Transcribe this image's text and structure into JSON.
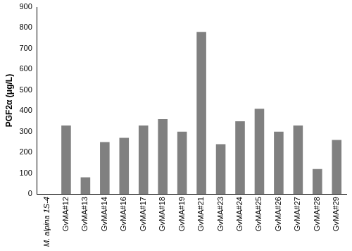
{
  "chart_data": {
    "type": "bar",
    "y_label": "PGF2α (μg/L)",
    "categories": [
      "M. alpina 1S-4",
      "GvMA#12",
      "GvMA#13",
      "GvMA#14",
      "GvMA#16",
      "GvMA#17",
      "GvMA#18",
      "GvMA#19",
      "GvMA#21",
      "GvMA#23",
      "GvMA#24",
      "GvMA#25",
      "GvMA#26",
      "GvMA#27",
      "GvMA#28",
      "GvMA#29"
    ],
    "values": [
      0,
      330,
      80,
      250,
      270,
      330,
      360,
      300,
      780,
      240,
      350,
      410,
      300,
      330,
      120,
      260
    ],
    "color": "#808080",
    "ylim": [
      0,
      900
    ],
    "yticks": [
      0,
      100,
      200,
      300,
      400,
      500,
      600,
      700,
      800,
      900
    ],
    "grid": false
  }
}
